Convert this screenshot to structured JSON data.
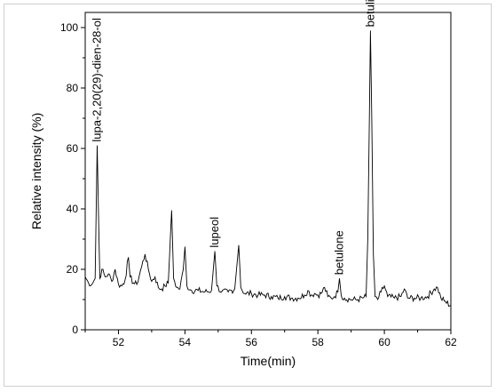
{
  "chart_data": {
    "type": "line",
    "xlabel": "Time(min)",
    "ylabel": "Relative intensity (%)",
    "xlim": [
      51,
      62
    ],
    "ylim": [
      0,
      105
    ],
    "x_ticks": [
      52,
      54,
      56,
      58,
      60,
      62
    ],
    "y_ticks": [
      0,
      20,
      40,
      60,
      80,
      100
    ],
    "grid": false,
    "line_color": "#000000",
    "series": [
      {
        "points": [
          [
            51.0,
            17.5
          ],
          [
            51.1,
            15.5
          ],
          [
            51.2,
            15.0
          ],
          [
            51.3,
            17.0
          ],
          [
            51.33,
            40.0
          ],
          [
            51.36,
            61.0
          ],
          [
            51.4,
            38.0
          ],
          [
            51.44,
            17.0
          ],
          [
            51.5,
            20.0
          ],
          [
            51.6,
            17.5
          ],
          [
            51.7,
            18.5
          ],
          [
            51.8,
            16.0
          ],
          [
            51.9,
            20.0
          ],
          [
            52.0,
            15.0
          ],
          [
            52.1,
            14.5
          ],
          [
            52.2,
            16.5
          ],
          [
            52.3,
            24.0
          ],
          [
            52.35,
            17.5
          ],
          [
            52.45,
            15.5
          ],
          [
            52.55,
            15.0
          ],
          [
            52.7,
            21.0
          ],
          [
            52.8,
            25.0
          ],
          [
            52.9,
            20.0
          ],
          [
            53.0,
            16.0
          ],
          [
            53.1,
            17.5
          ],
          [
            53.2,
            14.0
          ],
          [
            53.3,
            13.5
          ],
          [
            53.4,
            14.5
          ],
          [
            53.5,
            15.5
          ],
          [
            53.6,
            39.5
          ],
          [
            53.66,
            17.0
          ],
          [
            53.75,
            14.0
          ],
          [
            53.85,
            13.5
          ],
          [
            53.95,
            20.0
          ],
          [
            54.0,
            27.5
          ],
          [
            54.06,
            14.5
          ],
          [
            54.2,
            13.0
          ],
          [
            54.4,
            13.0
          ],
          [
            54.6,
            12.5
          ],
          [
            54.8,
            13.0
          ],
          [
            54.9,
            26.0
          ],
          [
            54.96,
            14.5
          ],
          [
            55.1,
            12.5
          ],
          [
            55.3,
            12.5
          ],
          [
            55.5,
            13.5
          ],
          [
            55.62,
            28.0
          ],
          [
            55.68,
            14.0
          ],
          [
            55.8,
            12.0
          ],
          [
            56.0,
            12.0
          ],
          [
            56.2,
            11.5
          ],
          [
            56.4,
            11.5
          ],
          [
            56.6,
            11.0
          ],
          [
            56.8,
            10.5
          ],
          [
            57.0,
            11.0
          ],
          [
            57.2,
            10.5
          ],
          [
            57.4,
            10.5
          ],
          [
            57.6,
            11.5
          ],
          [
            57.7,
            13.0
          ],
          [
            57.8,
            11.5
          ],
          [
            57.9,
            12.0
          ],
          [
            58.0,
            11.5
          ],
          [
            58.1,
            12.0
          ],
          [
            58.2,
            14.0
          ],
          [
            58.3,
            11.0
          ],
          [
            58.4,
            10.5
          ],
          [
            58.5,
            11.0
          ],
          [
            58.6,
            12.5
          ],
          [
            58.65,
            17.0
          ],
          [
            58.7,
            11.5
          ],
          [
            58.8,
            10.5
          ],
          [
            59.0,
            10.0
          ],
          [
            59.2,
            10.0
          ],
          [
            59.35,
            10.5
          ],
          [
            59.45,
            11.0
          ],
          [
            59.5,
            30.0
          ],
          [
            59.55,
            70.0
          ],
          [
            59.58,
            99.0
          ],
          [
            59.62,
            70.0
          ],
          [
            59.67,
            25.0
          ],
          [
            59.72,
            11.0
          ],
          [
            59.8,
            10.0
          ],
          [
            59.9,
            12.5
          ],
          [
            60.0,
            14.5
          ],
          [
            60.1,
            11.0
          ],
          [
            60.3,
            10.5
          ],
          [
            60.5,
            11.0
          ],
          [
            60.6,
            13.5
          ],
          [
            60.7,
            10.5
          ],
          [
            60.9,
            10.5
          ],
          [
            61.1,
            10.5
          ],
          [
            61.3,
            11.0
          ],
          [
            61.5,
            13.5
          ],
          [
            61.6,
            14.0
          ],
          [
            61.7,
            10.5
          ],
          [
            61.8,
            9.5
          ],
          [
            62.0,
            8.0
          ]
        ]
      }
    ],
    "annotations": [
      {
        "text": "lupa-2,20(29)-dien-28-ol",
        "x": 51.36,
        "y": 61
      },
      {
        "text": "lupeol",
        "x": 54.9,
        "y": 26
      },
      {
        "text": "betulone",
        "x": 58.65,
        "y": 17
      },
      {
        "text": "betulin",
        "x": 59.58,
        "y": 99
      }
    ]
  }
}
